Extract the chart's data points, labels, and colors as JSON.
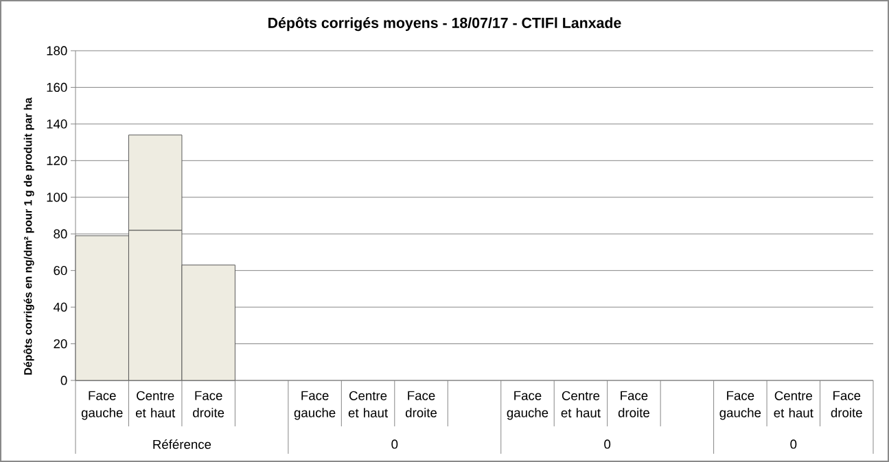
{
  "chart_data": {
    "type": "bar",
    "title": "Dépôts corrigés moyens - 18/07/17 - CTIFl Lanxade",
    "ylabel": "Dépôts corrigés en ng/dm² pour 1 g de produit par ha",
    "categories": [
      "Face gauche",
      "Centre et haut",
      "Face droite",
      null,
      "Face gauche",
      "Centre et haut",
      "Face droite",
      null,
      "Face gauche",
      "Centre et haut",
      "Face droite",
      null,
      "Face gauche",
      "Centre et haut",
      "Face droite"
    ],
    "stacked": true,
    "series": [
      {
        "color": "#eeece1",
        "values": [
          79,
          82,
          63,
          null,
          null,
          null,
          null,
          null,
          null,
          null,
          null,
          null,
          null,
          null,
          null
        ]
      },
      {
        "color": "#eeece1",
        "values": [
          null,
          52,
          null,
          null,
          null,
          null,
          null,
          null,
          null,
          null,
          null,
          null,
          null,
          null,
          null
        ]
      }
    ],
    "ylim": [
      0,
      180
    ],
    "yticks": [
      0,
      20,
      40,
      60,
      80,
      100,
      120,
      140,
      160,
      180
    ],
    "grid": "y",
    "annotations": [
      "Référence",
      "0",
      "0",
      "0"
    ]
  }
}
